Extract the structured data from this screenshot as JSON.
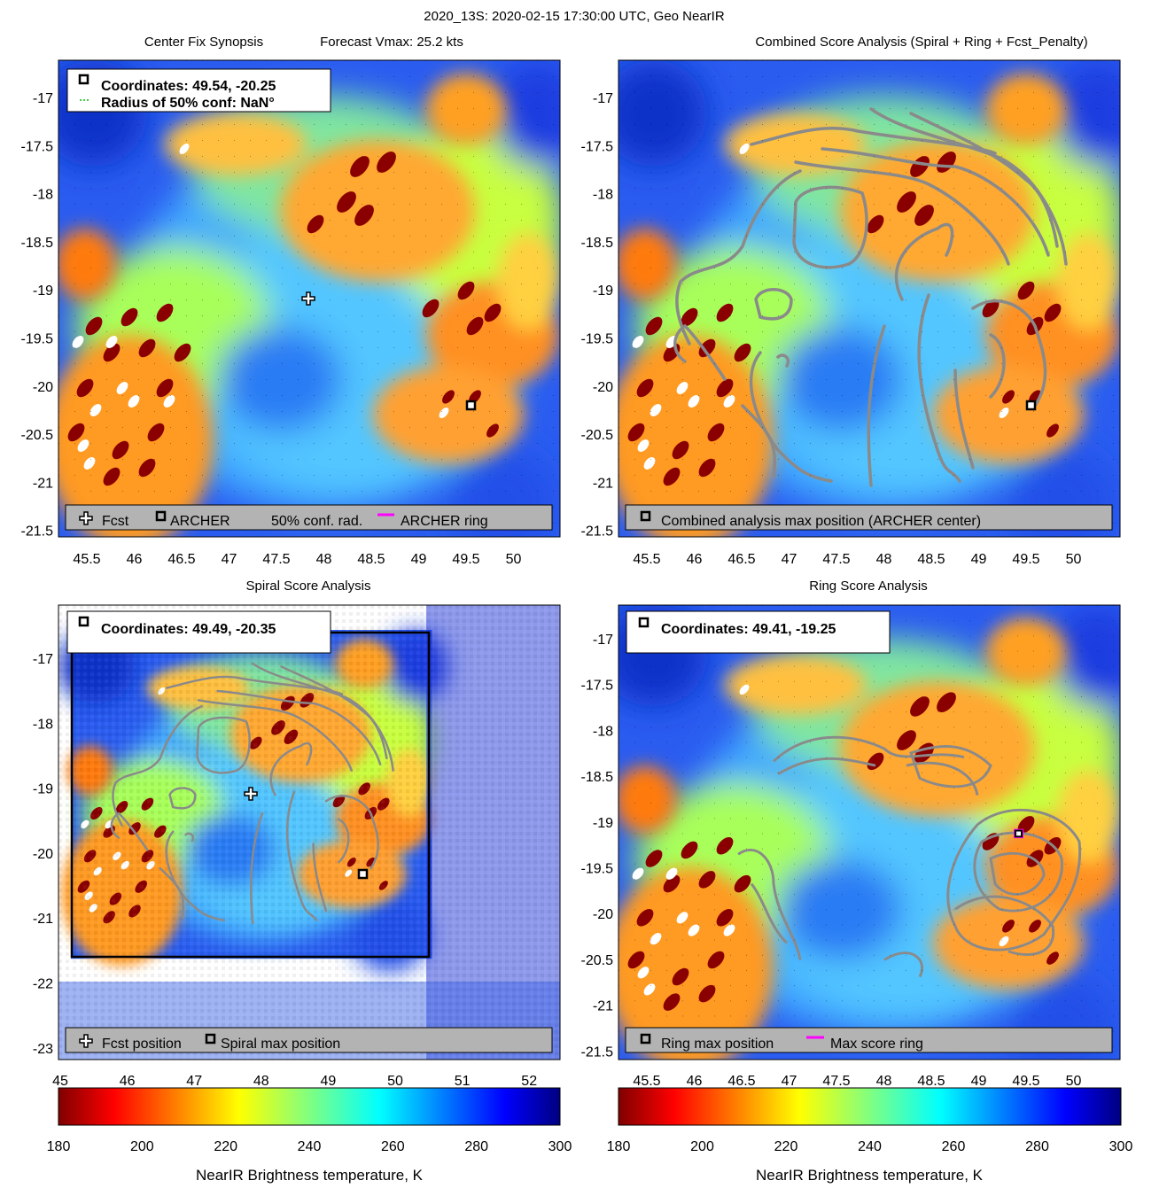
{
  "suptitle": "2020_13S: 2020-02-15 17:30:00 UTC, Geo NearIR",
  "panels": [
    {
      "id": "synopsis",
      "title_left": "Center Fix Synopsis",
      "title_right": "Forecast Vmax: 25.2 kts",
      "xticks": [
        "45.5",
        "46",
        "46.5",
        "47",
        "47.5",
        "48",
        "48.5",
        "49",
        "49.5",
        "50"
      ],
      "yticks": [
        "-17",
        "-17.5",
        "-18",
        "-18.5",
        "-19",
        "-19.5",
        "-20",
        "-20.5",
        "-21",
        "-21.5"
      ],
      "info_lines": [
        "Coordinates: 49.54, -20.25",
        "Radius of 50% conf: NaN°"
      ],
      "legend": [
        "Fcst",
        "ARCHER",
        "50% conf. rad.",
        "ARCHER ring"
      ],
      "markers": {
        "fcst": [
          47.82,
          -19.1
        ],
        "archer": [
          49.54,
          -20.25
        ]
      }
    },
    {
      "id": "combined",
      "title": "Combined Score Analysis (Spiral + Ring + Fcst_Penalty)",
      "xticks": [
        "45.5",
        "46",
        "46.5",
        "47",
        "47.5",
        "48",
        "48.5",
        "49",
        "49.5",
        "50"
      ],
      "yticks": [
        "-17",
        "-17.5",
        "-18",
        "-18.5",
        "-19",
        "-19.5",
        "-20",
        "-20.5",
        "-21",
        "-21.5"
      ],
      "legend": [
        "Combined analysis max position (ARCHER center)"
      ],
      "markers": {
        "archer": [
          49.54,
          -20.25
        ]
      }
    },
    {
      "id": "spiral",
      "title": "Spiral Score Analysis",
      "xticks": [
        "45",
        "46",
        "47",
        "48",
        "49",
        "50",
        "51",
        "52"
      ],
      "yticks": [
        "-17",
        "-18",
        "-19",
        "-20",
        "-21",
        "-22",
        "-23"
      ],
      "info_lines": [
        "Coordinates: 49.49, -20.35"
      ],
      "legend": [
        "Fcst position",
        "Spiral max position"
      ],
      "markers": {
        "fcst": [
          47.82,
          -19.1
        ],
        "spiral_max": [
          49.49,
          -20.35
        ]
      }
    },
    {
      "id": "ring",
      "title": "Ring Score Analysis",
      "xticks": [
        "45.5",
        "46",
        "46.5",
        "47",
        "47.5",
        "48",
        "48.5",
        "49",
        "49.5",
        "50"
      ],
      "yticks": [
        "-17",
        "-17.5",
        "-18",
        "-18.5",
        "-19",
        "-19.5",
        "-20",
        "-20.5",
        "-21",
        "-21.5"
      ],
      "info_lines": [
        "Coordinates: 49.41, -19.25"
      ],
      "legend": [
        "Ring max position",
        "Max score ring"
      ],
      "markers": {
        "ring_max": [
          49.41,
          -19.25
        ]
      }
    }
  ],
  "colorbar": {
    "ticks": [
      "180",
      "200",
      "220",
      "240",
      "260",
      "280",
      "300"
    ],
    "label": "NearIR Brightness temperature, K"
  },
  "chart_data": {
    "type": "heatmap",
    "title": "2020_13S: 2020-02-15 17:30:00 UTC, Geo NearIR",
    "colormap": "jet",
    "value_range": [
      180,
      300
    ],
    "colorbar_label": "NearIR Brightness temperature, K",
    "panels": [
      {
        "name": "Center Fix Synopsis",
        "xlim": [
          45.2,
          50.5
        ],
        "ylim": [
          -21.6,
          -16.7
        ],
        "fcst": [
          47.82,
          -19.1
        ],
        "archer_center": [
          49.54,
          -20.25
        ],
        "forecast_vmax_kts": 25.2,
        "confidence_radius_deg": "NaN"
      },
      {
        "name": "Combined Score Analysis (Spiral + Ring + Fcst_Penalty)",
        "xlim": [
          45.2,
          50.5
        ],
        "ylim": [
          -21.6,
          -16.7
        ],
        "max_position": [
          49.54,
          -20.25
        ]
      },
      {
        "name": "Spiral Score Analysis",
        "xlim": [
          45.0,
          52.4
        ],
        "ylim": [
          -23.2,
          -16.2
        ],
        "fcst": [
          47.82,
          -19.1
        ],
        "spiral_max": [
          49.49,
          -20.35
        ]
      },
      {
        "name": "Ring Score Analysis",
        "xlim": [
          45.2,
          50.5
        ],
        "ylim": [
          -21.6,
          -16.7
        ],
        "ring_max": [
          49.41,
          -19.25
        ]
      }
    ]
  }
}
